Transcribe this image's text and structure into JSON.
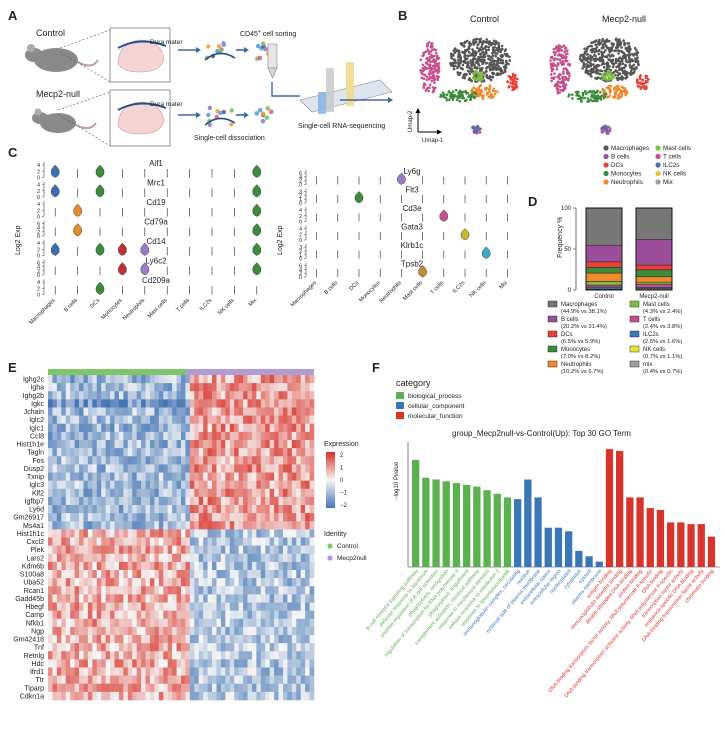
{
  "panels": {
    "a": {
      "letter": "A",
      "control_label": "Control",
      "mecp2_label": "Mecp2-null",
      "dura_label": "Dura mater",
      "sorting_label_prefix": "CD45",
      "sorting_label_sup": "+",
      "sorting_label_suffix": " cell sorting",
      "dissociation_label": "Single-cell dissociation",
      "seq_label": "Single-cell RNA-sequencing"
    },
    "b": {
      "letter": "B",
      "control_title": "Control",
      "mecp2_title": "Mecp2-null",
      "umap1": "Umap-1",
      "umap2": "Umap-2",
      "legend": [
        {
          "name": "Macrophages",
          "color": "#555555"
        },
        {
          "name": "B cells",
          "color": "#9b4f9b"
        },
        {
          "name": "DCs",
          "color": "#e8413a"
        },
        {
          "name": "Monocytes",
          "color": "#3d8b3d"
        },
        {
          "name": "Neutrophils",
          "color": "#f0892c"
        },
        {
          "name": "Mast cells",
          "color": "#7fbf3f"
        },
        {
          "name": "T cells",
          "color": "#c7508c"
        },
        {
          "name": "ILC2s",
          "color": "#3c7ab8"
        },
        {
          "name": "NK cells",
          "color": "#e8c43a"
        },
        {
          "name": "Mix",
          "color": "#a0a0a0"
        }
      ]
    },
    "c": {
      "letter": "C",
      "ylabel": "Log2 Exp",
      "categories": [
        "Macrophages",
        "B cells",
        "DCs",
        "Monocytes",
        "Neutrophils",
        "Mast cells",
        "T cells",
        "ILC2s",
        "NK cells",
        "Mix"
      ],
      "left_genes": [
        "Aif1",
        "Mrc1",
        "Cd19",
        "Cd79a",
        "Cd14",
        "Ly6c2",
        "Cd209a"
      ],
      "right_genes": [
        "Ly6g",
        "Flt3",
        "Cd3e",
        "Gata3",
        "Klrb1c",
        "Tpsb2"
      ],
      "left_ticks": [
        [
          "0",
          "2",
          "4"
        ],
        [
          "0",
          "2",
          "4"
        ],
        [
          "0",
          "2",
          "4"
        ],
        [
          "0",
          "2",
          "4",
          "6"
        ],
        [
          "0",
          "2",
          "4"
        ],
        [
          "0",
          "2",
          "4",
          "6"
        ],
        [
          "0",
          "2",
          "4"
        ]
      ],
      "right_ticks": [
        [
          "0",
          "2",
          "4",
          "6"
        ],
        [
          "0",
          "1",
          "2",
          "3"
        ],
        [
          "0",
          "2",
          "4"
        ],
        [
          "0",
          "2",
          "4"
        ],
        [
          "0",
          "1",
          "2",
          "3"
        ],
        [
          "0",
          "2",
          "4",
          "6"
        ]
      ]
    },
    "d": {
      "letter": "D",
      "ylabel": "Frequency %",
      "yticks": [
        "0",
        "50",
        "100"
      ],
      "categories": [
        "Control",
        "Mecp2-null"
      ],
      "legend": [
        {
          "name": "Macrophages",
          "stat": "(44.9% vs 38.1%)",
          "color": "#777777"
        },
        {
          "name": "B cells",
          "stat": "(20.2% vs 31.4%)",
          "color": "#9b4f9b"
        },
        {
          "name": "DCs",
          "stat": "(6.5% vs 5.9%)",
          "color": "#e8413a"
        },
        {
          "name": "Monocytes",
          "stat": "(7.0% vs 8.2%)",
          "color": "#3d8b3d"
        },
        {
          "name": "Neutrophils",
          "stat": "(10.2% vs 6.7%)",
          "color": "#f0892c"
        },
        {
          "name": "Mast cells",
          "stat": "(4.3% vs 2.4%)",
          "color": "#7fbf3f"
        },
        {
          "name": "T cells",
          "stat": "(2.4% vs 3.8%)",
          "color": "#c7508c"
        },
        {
          "name": "ILC2s",
          "stat": "(2.5% vs 1.6%)",
          "color": "#3c7ab8"
        },
        {
          "name": "NK cells",
          "stat": "(0.7% vs 1.1%)",
          "color": "#e8e43a"
        },
        {
          "name": "mix",
          "stat": "(0.4% vs 0.7%)",
          "color": "#a0a0a0"
        }
      ]
    },
    "e": {
      "letter": "E",
      "genes": [
        "Ighg2c",
        "Igha",
        "Ighg2b",
        "Igkc",
        "Jchain",
        "Iglc2",
        "Iglc1",
        "Ccl8",
        "Hist1h1e",
        "Tagln",
        "Fos",
        "Dusp2",
        "Txnip",
        "Iglc3",
        "Klf2",
        "Igfbp7",
        "Ly6d",
        "Gm26917",
        "Ms4a1",
        "Hist1h1c",
        "Cxcl2",
        "Plek",
        "Lars2",
        "Kdm6b",
        "S100a8",
        "Uba52",
        "Rcan1",
        "Gadd45b",
        "Hbegf",
        "Camp",
        "Nfkb1",
        "Ngp",
        "Gm42418",
        "Tnf",
        "Retnlg",
        "Hdc",
        "Ifrd1",
        "Ttr",
        "Tiparp",
        "Cdkn1a"
      ],
      "expression_title": "Expression",
      "expression_ticks": [
        "2",
        "1",
        "0",
        "−1",
        "−2"
      ],
      "identity_title": "Identity",
      "identity": [
        {
          "name": "Control",
          "color": "#7fc56a"
        },
        {
          "name": "Mecp2null",
          "color": "#b09bd4"
        }
      ]
    },
    "f": {
      "letter": "F",
      "legend_title": "category",
      "legend": [
        {
          "name": "biological_process",
          "color": "#5bb04f"
        },
        {
          "name": "cellular_component",
          "color": "#3a78b5"
        },
        {
          "name": "molecular_function",
          "color": "#d9342b"
        }
      ],
      "title": "group_Mecp2null-vs-Control(Up): Top 30 GO Term",
      "ylabel": "−log10 Pvalue"
    }
  },
  "chart_data": [
    {
      "type": "bar",
      "panel": "D",
      "ylabel": "Frequency %",
      "ylim": [
        0,
        100
      ],
      "categories": [
        "Control",
        "Mecp2-null"
      ],
      "series": [
        {
          "name": "Macrophages",
          "values": [
            44.9,
            38.1
          ]
        },
        {
          "name": "B cells",
          "values": [
            20.2,
            31.4
          ]
        },
        {
          "name": "DCs",
          "values": [
            6.5,
            5.9
          ]
        },
        {
          "name": "Monocytes",
          "values": [
            7.0,
            8.2
          ]
        },
        {
          "name": "Neutrophils",
          "values": [
            10.2,
            6.7
          ]
        },
        {
          "name": "Mast cells",
          "values": [
            4.3,
            2.4
          ]
        },
        {
          "name": "T cells",
          "values": [
            2.4,
            3.8
          ]
        },
        {
          "name": "ILC2s",
          "values": [
            2.5,
            1.6
          ]
        },
        {
          "name": "NK cells",
          "values": [
            0.7,
            1.1
          ]
        },
        {
          "name": "mix",
          "values": [
            0.4,
            0.7
          ]
        }
      ]
    },
    {
      "type": "bar",
      "panel": "F",
      "title": "group_Mecp2null-vs-Control(Up): Top 30 GO Term",
      "ylabel": "−log10 Pvalue",
      "terms": [
        {
          "label": "B cell receptor signaling pathway",
          "value": 6.0,
          "category": "biological_process"
        },
        {
          "label": "defense response to bacterium",
          "value": 5.0,
          "category": "biological_process"
        },
        {
          "label": "positive regulation of B cell activation",
          "value": 4.9,
          "category": "biological_process"
        },
        {
          "label": "phagocytosis, recognition",
          "value": 4.8,
          "category": "biological_process"
        },
        {
          "label": "regulation of transcription by RNA polymerase II",
          "value": 4.7,
          "category": "biological_process"
        },
        {
          "label": "phagocytosis, engulfment",
          "value": 4.6,
          "category": "biological_process"
        },
        {
          "label": "complement activation, classical pathway",
          "value": 4.5,
          "category": "biological_process"
        },
        {
          "label": "response to mechanical stimulus",
          "value": 4.3,
          "category": "biological_process"
        },
        {
          "label": "cellular response to interleukin-1",
          "value": 4.1,
          "category": "biological_process"
        },
        {
          "label": "response to lipopolysaccharide",
          "value": 3.9,
          "category": "biological_process"
        },
        {
          "label": "immunoglobulin complex, circulating",
          "value": 3.8,
          "category": "cellular_component"
        },
        {
          "label": "nucleus",
          "value": 4.9,
          "category": "cellular_component"
        },
        {
          "label": "external side of plasma membrane",
          "value": 3.9,
          "category": "cellular_component"
        },
        {
          "label": "extracellular space",
          "value": 2.2,
          "category": "cellular_component"
        },
        {
          "label": "extracellular region",
          "value": 2.2,
          "category": "cellular_component"
        },
        {
          "label": "nucleoplasm",
          "value": 2.0,
          "category": "cellular_component"
        },
        {
          "label": "cytoplasm",
          "value": 0.9,
          "category": "cellular_component"
        },
        {
          "label": "cytosol",
          "value": 0.6,
          "category": "cellular_component"
        },
        {
          "label": "plasma membrane",
          "value": 0.3,
          "category": "cellular_component"
        },
        {
          "label": "antigen binding",
          "value": 6.6,
          "category": "molecular_function"
        },
        {
          "label": "immunoglobulin receptor binding",
          "value": 6.5,
          "category": "molecular_function"
        },
        {
          "label": "double-stranded DNA binding",
          "value": 3.9,
          "category": "molecular_function"
        },
        {
          "label": "protein binding",
          "value": 3.9,
          "category": "molecular_function"
        },
        {
          "label": "DNA-binding transcription factor activity, RNA polymerase II-specific",
          "value": 3.3,
          "category": "molecular_function"
        },
        {
          "label": "DNA binding",
          "value": 3.2,
          "category": "molecular_function"
        },
        {
          "label": "DNA-binding transcription activator activity, RNA polymerase II-specific",
          "value": 2.5,
          "category": "molecular_function"
        },
        {
          "label": "transcription factor activity",
          "value": 2.5,
          "category": "molecular_function"
        },
        {
          "label": "sequence-specific DNA binding",
          "value": 2.4,
          "category": "molecular_function"
        },
        {
          "label": "DNA-binding transcription factor activity",
          "value": 2.4,
          "category": "molecular_function"
        },
        {
          "label": "chromatin binding",
          "value": 1.7,
          "category": "molecular_function"
        }
      ]
    }
  ]
}
